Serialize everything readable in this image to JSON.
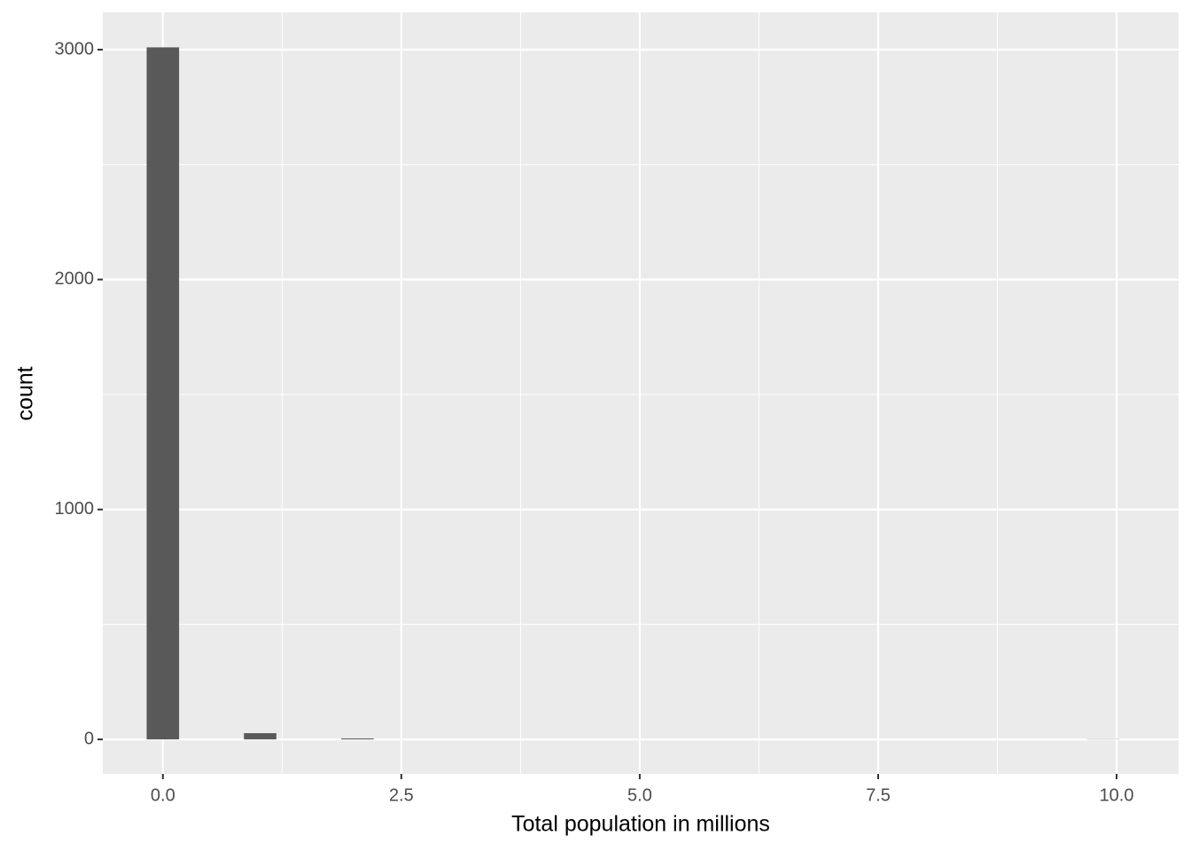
{
  "chart_data": {
    "type": "histogram",
    "xlabel": "Total population in millions",
    "ylabel": "count",
    "bins": [
      -0.17,
      0.17,
      0.51,
      0.85,
      1.19,
      1.53,
      1.87,
      2.21,
      2.55,
      2.89,
      3.23,
      3.57,
      3.91,
      4.25,
      4.59,
      4.93,
      5.27,
      5.61,
      5.95,
      6.29,
      6.63,
      6.97,
      7.31,
      7.65,
      7.99,
      8.33,
      8.67,
      9.01,
      9.35,
      9.69,
      10.03
    ],
    "values": [
      3010,
      0,
      0,
      27,
      0,
      0,
      4,
      0,
      0,
      0,
      0,
      0,
      0,
      0,
      0,
      0,
      0,
      0,
      0,
      0,
      0,
      0,
      0,
      0,
      0,
      0,
      0,
      0,
      0,
      1
    ],
    "color": "#595959",
    "xlim": [
      -0.63,
      10.65
    ],
    "ylim": [
      -150,
      3162
    ],
    "xticks": [
      {
        "value": 0,
        "label": "0.0"
      },
      {
        "value": 2.5,
        "label": "2.5"
      },
      {
        "value": 5,
        "label": "5.0"
      },
      {
        "value": 7.5,
        "label": "7.5"
      },
      {
        "value": 10,
        "label": "10.0"
      }
    ],
    "yticks": [
      0,
      1000,
      2000,
      3000
    ],
    "grid": true
  }
}
